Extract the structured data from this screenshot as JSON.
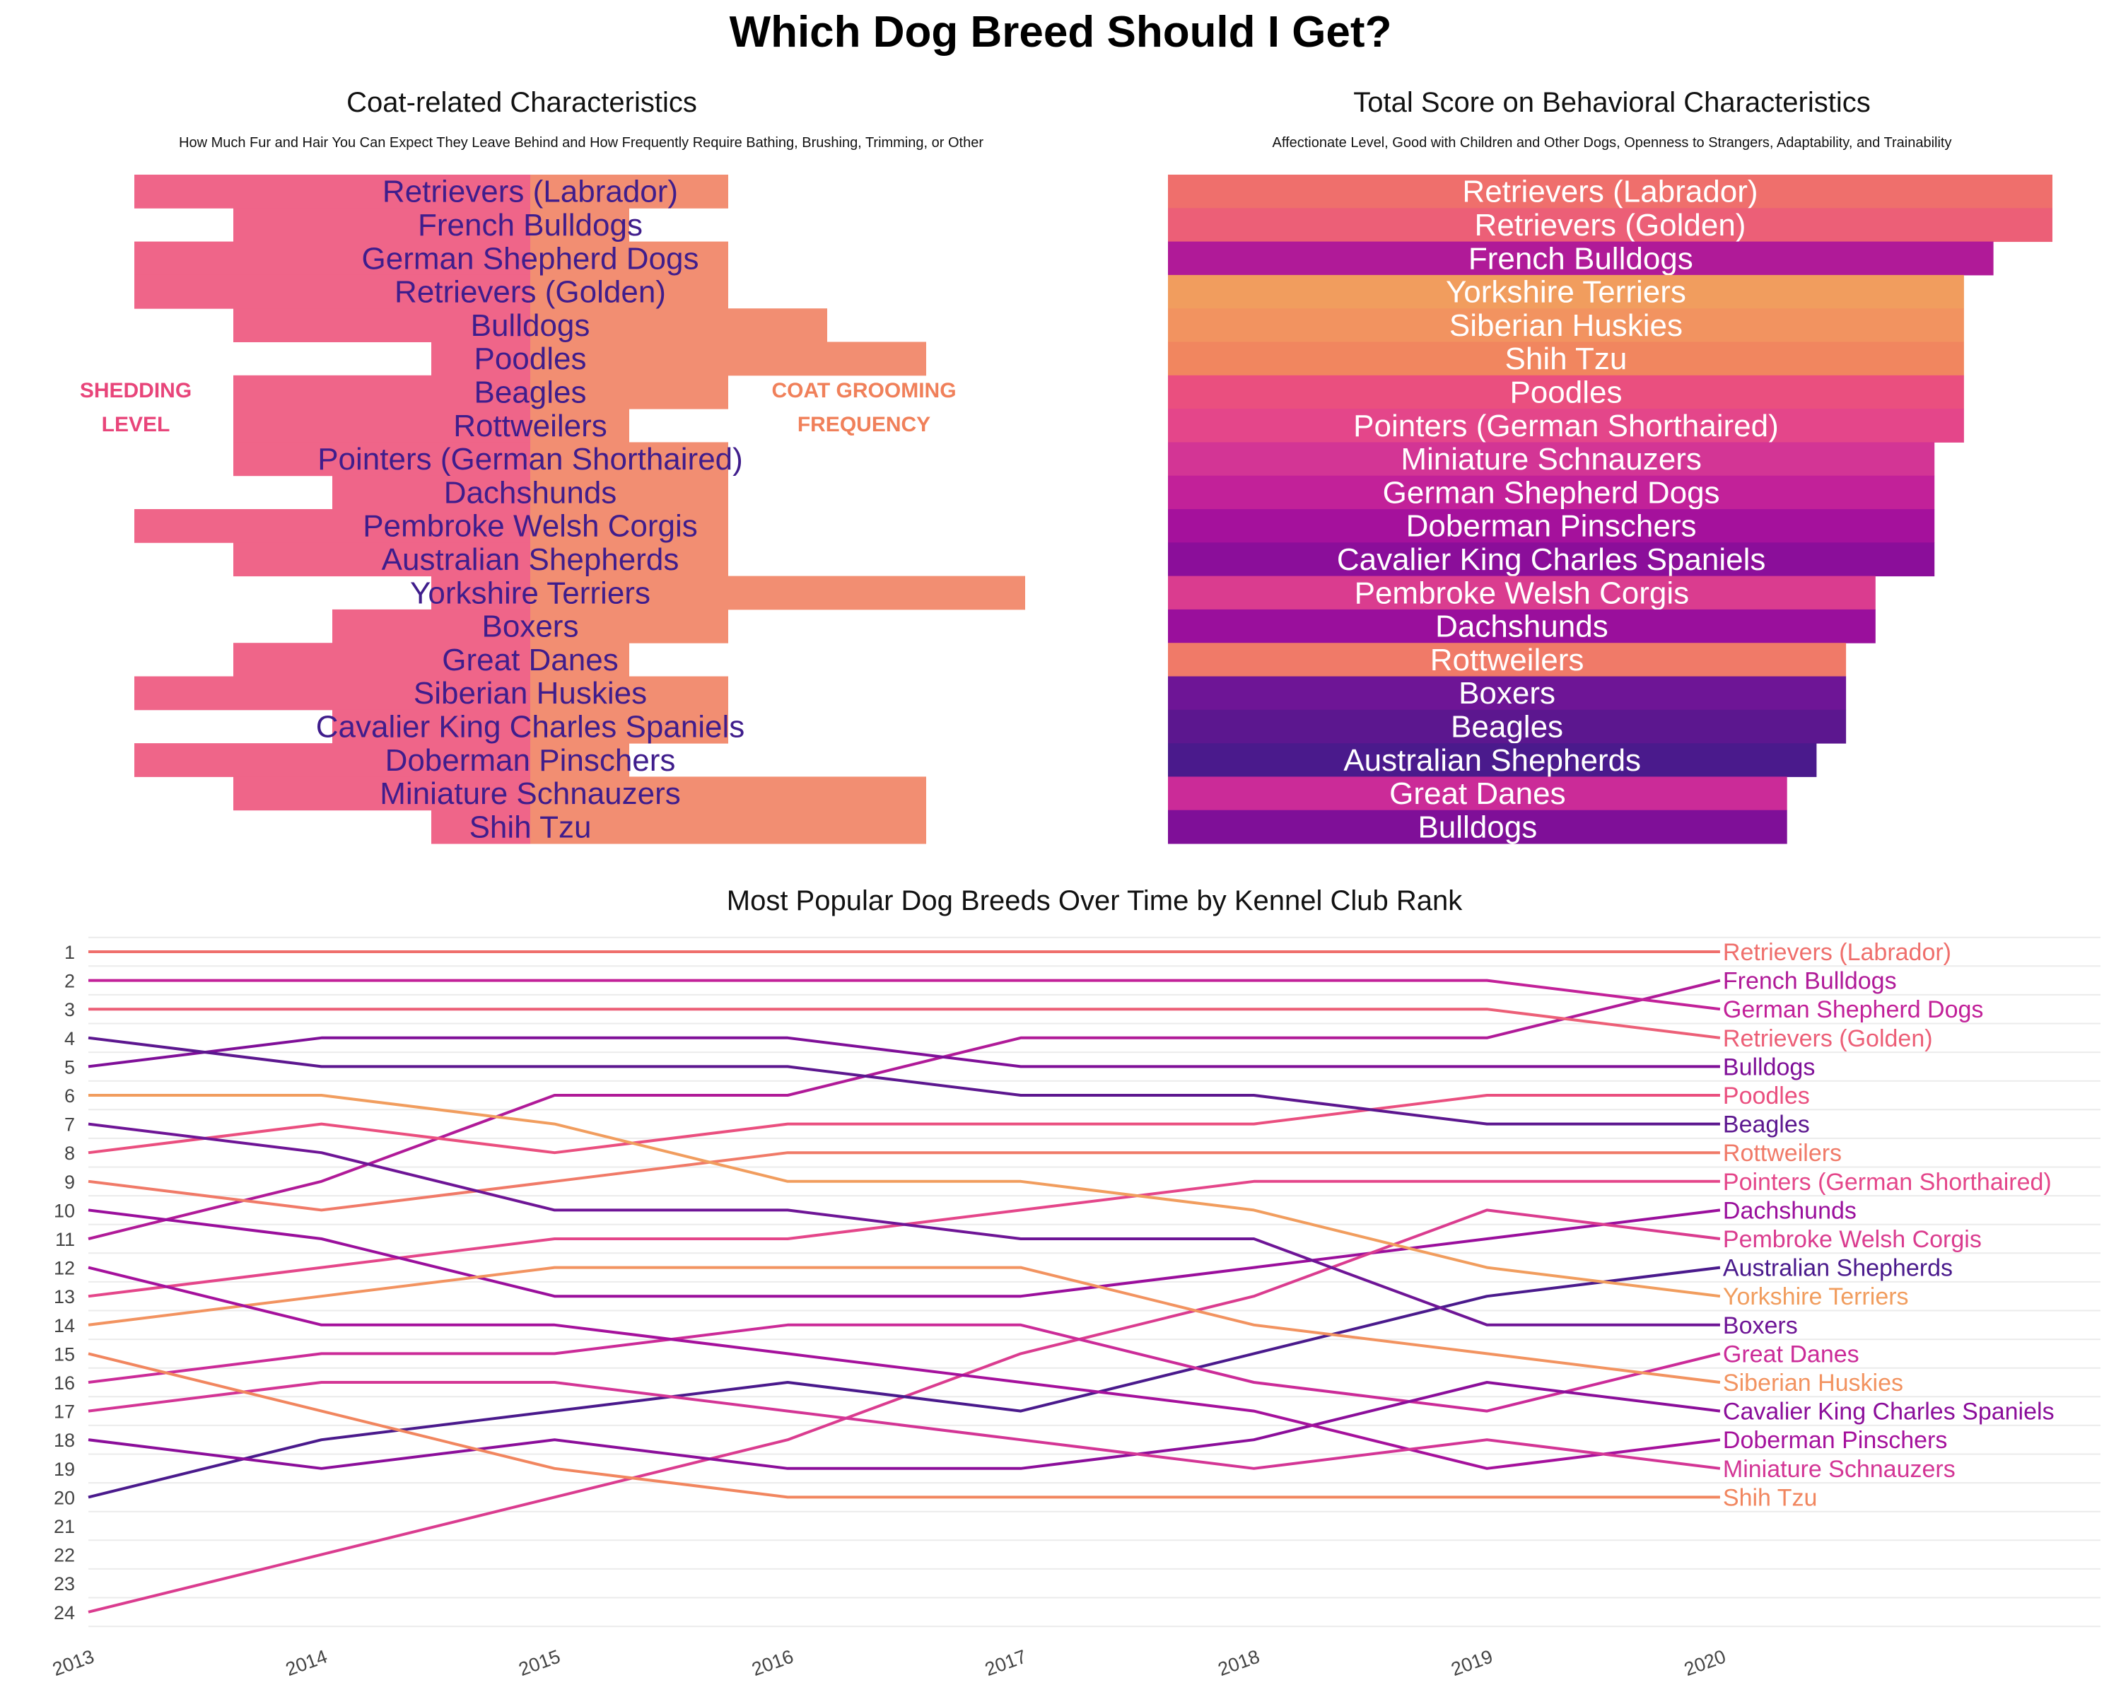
{
  "title": "Which Dog Breed Should I Get?",
  "colors": {
    "Retrievers (Labrador)": "#ef6f6c",
    "Retrievers (Golden)": "#ec5f77",
    "French Bulldogs": "#b01a98",
    "German Shepherd Dogs": "#c22199",
    "Bulldogs": "#7f0f98",
    "Poodles": "#ea4f7f",
    "Beagles": "#5c178f",
    "Rottweilers": "#f07a68",
    "Pointers (German Shorthaired)": "#e4468a",
    "Dachshunds": "#9a0f9c",
    "Pembroke Welsh Corgis": "#da3c8f",
    "Australian Shepherds": "#4a1a8c",
    "Yorkshire Terriers": "#f19d5e",
    "Boxers": "#6e1596",
    "Great Danes": "#cb2b98",
    "Siberian Huskies": "#f29360",
    "Cavalier King Charles Spaniels": "#8b0e9a",
    "Doberman Pinschers": "#a5119c",
    "Miniature Schnauzers": "#d33595",
    "Shih Tzu": "#f1865f"
  },
  "chart_data": [
    {
      "type": "bar",
      "title": "Coat-related Characteristics",
      "subtitle": "How Much Fur and Hair You Can Expect They Leave Behind and How Frequently Require Bathing, Brushing, Trimming, or Other",
      "left_label": [
        "SHEDDING",
        "LEVEL"
      ],
      "right_label": [
        "COAT GROOMING",
        "FREQUENCY"
      ],
      "left_color": "#ef6589",
      "right_color": "#f28e72",
      "label_color": "#3f1d8c",
      "categories": [
        "Retrievers (Labrador)",
        "French Bulldogs",
        "German Shepherd Dogs",
        "Retrievers (Golden)",
        "Bulldogs",
        "Poodles",
        "Beagles",
        "Rottweilers",
        "Pointers (German Shorthaired)",
        "Dachshunds",
        "Pembroke Welsh Corgis",
        "Australian Shepherds",
        "Yorkshire Terriers",
        "Boxers",
        "Great Danes",
        "Siberian Huskies",
        "Cavalier King Charles Spaniels",
        "Doberman Pinschers",
        "Miniature Schnauzers",
        "Shih Tzu"
      ],
      "series": [
        {
          "name": "Shedding Level",
          "values": [
            4,
            3,
            4,
            4,
            3,
            1,
            3,
            3,
            3,
            2,
            4,
            3,
            1,
            2,
            3,
            4,
            2,
            4,
            3,
            1
          ]
        },
        {
          "name": "Coat Grooming Frequency",
          "values": [
            2,
            1,
            2,
            2,
            3,
            4,
            2,
            1,
            2,
            2,
            2,
            2,
            5,
            2,
            1,
            2,
            2,
            1,
            4,
            4
          ]
        }
      ]
    },
    {
      "type": "bar",
      "title": "Total Score on Behavioral Characteristics",
      "subtitle": "Affectionate Level, Good with Children and Other Dogs, Openness to Strangers, Adaptability, and Trainability",
      "xlim": [
        0,
        30
      ],
      "categories": [
        "Retrievers (Labrador)",
        "Retrievers (Golden)",
        "French Bulldogs",
        "Yorkshire Terriers",
        "Siberian Huskies",
        "Shih Tzu",
        "Poodles",
        "Pointers (German Shorthaired)",
        "Miniature Schnauzers",
        "German Shepherd Dogs",
        "Doberman Pinschers",
        "Cavalier King Charles Spaniels",
        "Pembroke Welsh Corgis",
        "Dachshunds",
        "Rottweilers",
        "Boxers",
        "Beagles",
        "Australian Shepherds",
        "Great Danes",
        "Bulldogs"
      ],
      "values": [
        30,
        30,
        28,
        27,
        27,
        27,
        27,
        27,
        26,
        26,
        26,
        26,
        24,
        24,
        23,
        23,
        23,
        22,
        21,
        21
      ]
    },
    {
      "type": "line",
      "title": "Most Popular Dog Breeds Over Time by Kennel Club Rank",
      "x": [
        "2013",
        "2014",
        "2015",
        "2016",
        "2017",
        "2018",
        "2019",
        "2020"
      ],
      "y_ticks": [
        "1",
        "2",
        "3",
        "4",
        "5",
        "6",
        "7",
        "8",
        "9",
        "10",
        "11",
        "12",
        "13",
        "14",
        "15",
        "16",
        "17",
        "18",
        "19",
        "20",
        "21",
        "22",
        "23",
        "24"
      ],
      "ylim": [
        1,
        24
      ],
      "y_inverted": true,
      "series": [
        {
          "name": "Retrievers (Labrador)",
          "values": [
            1,
            1,
            1,
            1,
            1,
            1,
            1,
            1
          ]
        },
        {
          "name": "French Bulldogs",
          "values": [
            11,
            9,
            6,
            6,
            4,
            4,
            4,
            2
          ]
        },
        {
          "name": "German Shepherd Dogs",
          "values": [
            2,
            2,
            2,
            2,
            2,
            2,
            2,
            3
          ]
        },
        {
          "name": "Retrievers (Golden)",
          "values": [
            3,
            3,
            3,
            3,
            3,
            3,
            3,
            4
          ]
        },
        {
          "name": "Bulldogs",
          "values": [
            5,
            4,
            4,
            4,
            5,
            5,
            5,
            5
          ]
        },
        {
          "name": "Poodles",
          "values": [
            8,
            7,
            8,
            7,
            7,
            7,
            6,
            6
          ]
        },
        {
          "name": "Beagles",
          "values": [
            4,
            5,
            5,
            5,
            6,
            6,
            7,
            7
          ]
        },
        {
          "name": "Rottweilers",
          "values": [
            9,
            10,
            9,
            8,
            8,
            8,
            8,
            8
          ]
        },
        {
          "name": "Pointers (German Shorthaired)",
          "values": [
            13,
            12,
            11,
            11,
            10,
            9,
            9,
            9
          ]
        },
        {
          "name": "Dachshunds",
          "values": [
            10,
            11,
            13,
            13,
            13,
            12,
            11,
            10
          ]
        },
        {
          "name": "Pembroke Welsh Corgis",
          "values": [
            24,
            22,
            20,
            18,
            15,
            13,
            10,
            11
          ]
        },
        {
          "name": "Australian Shepherds",
          "values": [
            20,
            18,
            17,
            16,
            17,
            15,
            13,
            12
          ]
        },
        {
          "name": "Yorkshire Terriers",
          "values": [
            6,
            6,
            7,
            9,
            9,
            10,
            12,
            13
          ]
        },
        {
          "name": "Boxers",
          "values": [
            7,
            8,
            10,
            10,
            11,
            11,
            14,
            14
          ]
        },
        {
          "name": "Great Danes",
          "values": [
            16,
            15,
            15,
            14,
            14,
            16,
            17,
            15
          ]
        },
        {
          "name": "Siberian Huskies",
          "values": [
            14,
            13,
            12,
            12,
            12,
            14,
            15,
            16
          ]
        },
        {
          "name": "Cavalier King Charles Spaniels",
          "values": [
            18,
            19,
            18,
            19,
            19,
            18,
            16,
            17
          ]
        },
        {
          "name": "Doberman Pinschers",
          "values": [
            12,
            14,
            14,
            15,
            16,
            17,
            19,
            18
          ]
        },
        {
          "name": "Miniature Schnauzers",
          "values": [
            17,
            16,
            16,
            17,
            18,
            19,
            18,
            19
          ]
        },
        {
          "name": "Shih Tzu",
          "values": [
            15,
            17,
            19,
            20,
            20,
            20,
            20,
            20
          ]
        }
      ]
    }
  ]
}
